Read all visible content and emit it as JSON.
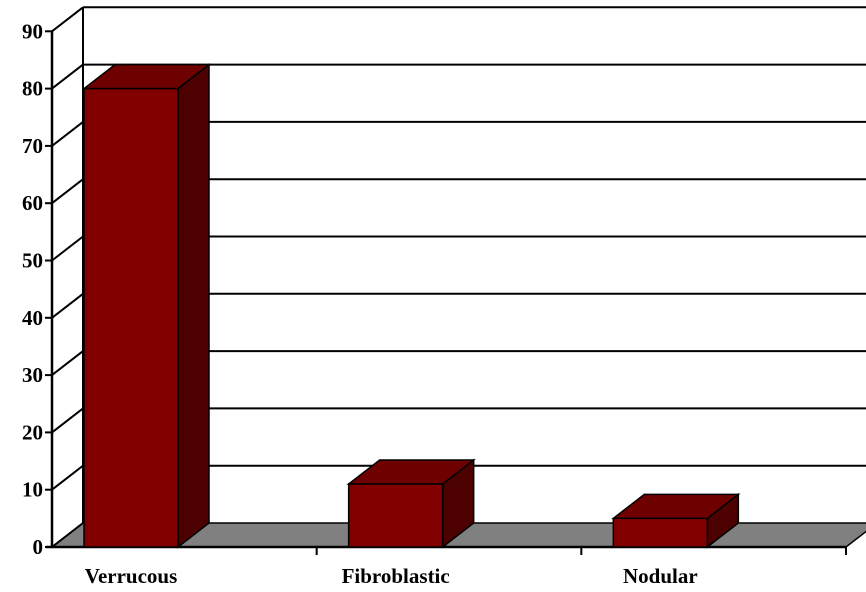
{
  "chart_data": {
    "type": "bar",
    "categories": [
      "Verrucous",
      "Fibroblastic",
      "Nodular"
    ],
    "values": [
      80,
      11,
      5
    ],
    "ylim": [
      0,
      90
    ],
    "yticks": [
      "0",
      "10",
      "20",
      "30",
      "40",
      "50",
      "60",
      "70",
      "80",
      "90"
    ],
    "title": "",
    "xlabel": "",
    "ylabel": "",
    "grid": true,
    "three_d": true,
    "legend": "none",
    "colors": {
      "bar_front": "#800000",
      "bar_top": "#6e0000",
      "bar_side": "#4d0000",
      "floor": "#808080",
      "gridline": "#000000",
      "background": "#ffffff"
    }
  }
}
